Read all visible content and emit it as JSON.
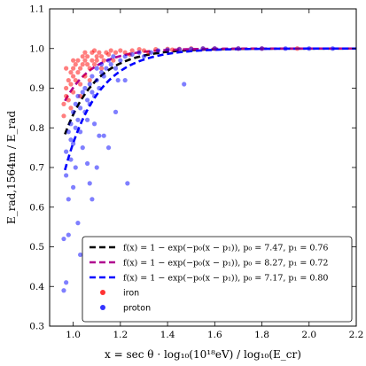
{
  "chart_data": {
    "type": "scatter",
    "xlabel": "x = sec θ · log₁₀(10¹⁸eV) / log₁₀(E_cr)",
    "ylabel": "E_rad,1564m / E_rad",
    "xlim": [
      0.9,
      2.2
    ],
    "ylim": [
      0.3,
      1.1
    ],
    "x_ticks": [
      "1.0",
      "1.2",
      "1.4",
      "1.6",
      "1.8",
      "2.0",
      "2.2"
    ],
    "y_ticks": [
      "0.3",
      "0.4",
      "0.5",
      "0.6",
      "0.7",
      "0.8",
      "0.9",
      "1.0",
      "1.1"
    ],
    "x_tick_values": [
      1.0,
      1.2,
      1.4,
      1.6,
      1.8,
      2.0,
      2.2
    ],
    "y_tick_values": [
      0.3,
      0.4,
      0.5,
      0.6,
      0.7,
      0.8,
      0.9,
      1.0,
      1.1
    ],
    "grid": false,
    "legend_position": "bottom-right",
    "fits": [
      {
        "label": "f(x) = 1 − exp(−p₀(x − p₁)), p₀ = 7.47, p₁ = 0.76",
        "p0": 7.47,
        "p1": 0.76,
        "color": "#000000",
        "x_range": [
          0.965,
          2.2
        ]
      },
      {
        "label": "f(x) = 1 − exp(−p₀(x − p₁)), p₀ = 8.27, p₁ = 0.72",
        "p0": 8.27,
        "p1": 0.72,
        "color": "#b0008f",
        "x_range": [
          0.965,
          2.2
        ]
      },
      {
        "label": "f(x) = 1 − exp(−p₀(x − p₁)), p₀ = 7.17, p₁ = 0.80",
        "p0": 7.17,
        "p1": 0.8,
        "color": "#0000ff",
        "x_range": [
          0.965,
          2.2
        ]
      }
    ],
    "series": [
      {
        "name": "iron",
        "color": "#ff0000",
        "points": [
          [
            0.96,
            0.86
          ],
          [
            0.96,
            0.83
          ],
          [
            0.97,
            0.88
          ],
          [
            0.97,
            0.9
          ],
          [
            0.98,
            0.92
          ],
          [
            0.98,
            0.87
          ],
          [
            0.99,
            0.91
          ],
          [
            0.99,
            0.94
          ],
          [
            1.0,
            0.93
          ],
          [
            1.0,
            0.95
          ],
          [
            1.0,
            0.89
          ],
          [
            1.01,
            0.96
          ],
          [
            1.01,
            0.92
          ],
          [
            1.02,
            0.94
          ],
          [
            1.02,
            0.97
          ],
          [
            1.03,
            0.95
          ],
          [
            1.03,
            0.91
          ],
          [
            1.04,
            0.96
          ],
          [
            1.04,
            0.98
          ],
          [
            1.05,
            0.93
          ],
          [
            1.05,
            0.97
          ],
          [
            1.06,
            0.96
          ],
          [
            1.06,
            0.98
          ],
          [
            1.07,
            0.95
          ],
          [
            1.08,
            0.97
          ],
          [
            1.08,
            0.99
          ],
          [
            1.09,
            0.96
          ],
          [
            1.1,
            0.98
          ],
          [
            1.1,
            0.97
          ],
          [
            1.11,
            0.99
          ],
          [
            1.12,
            0.98
          ],
          [
            1.13,
            0.97
          ],
          [
            1.14,
            0.99
          ],
          [
            1.15,
            0.985
          ],
          [
            1.16,
            0.995
          ],
          [
            1.18,
            0.99
          ],
          [
            1.2,
            0.995
          ],
          [
            1.22,
            0.99
          ],
          [
            1.25,
            0.995
          ],
          [
            1.28,
            0.998
          ],
          [
            1.3,
            0.995
          ],
          [
            1.35,
            0.998
          ],
          [
            1.4,
            0.999
          ],
          [
            1.45,
            0.999
          ],
          [
            1.5,
            1.0
          ],
          [
            1.55,
            1.0
          ],
          [
            1.6,
            1.0
          ],
          [
            1.7,
            1.0
          ],
          [
            1.8,
            1.0
          ],
          [
            1.95,
            1.0
          ],
          [
            1.03,
            0.88
          ],
          [
            1.07,
            0.92
          ],
          [
            0.99,
            0.85
          ],
          [
            1.12,
            0.95
          ],
          [
            1.17,
            0.97
          ],
          [
            1.24,
            0.985
          ],
          [
            1.32,
            0.99
          ],
          [
            1.42,
            0.997
          ],
          [
            1.05,
            0.99
          ],
          [
            1.09,
            0.995
          ],
          [
            0.97,
            0.95
          ],
          [
            1.0,
            0.97
          ]
        ]
      },
      {
        "name": "proton",
        "color": "#0000ff",
        "points": [
          [
            0.96,
            0.52
          ],
          [
            0.97,
            0.68
          ],
          [
            0.97,
            0.74
          ],
          [
            0.98,
            0.79
          ],
          [
            0.98,
            0.62
          ],
          [
            0.99,
            0.81
          ],
          [
            0.99,
            0.72
          ],
          [
            0.96,
            0.39
          ],
          [
            0.97,
            0.41
          ],
          [
            0.98,
            0.53
          ],
          [
            1.0,
            0.84
          ],
          [
            1.0,
            0.76
          ],
          [
            1.01,
            0.86
          ],
          [
            1.01,
            0.8
          ],
          [
            1.02,
            0.88
          ],
          [
            1.02,
            0.82
          ],
          [
            1.03,
            0.85
          ],
          [
            1.03,
            0.79
          ],
          [
            1.04,
            0.89
          ],
          [
            1.04,
            0.75
          ],
          [
            1.05,
            0.9
          ],
          [
            1.05,
            0.84
          ],
          [
            1.06,
            0.87
          ],
          [
            1.06,
            0.71
          ],
          [
            1.07,
            0.91
          ],
          [
            1.07,
            0.86
          ],
          [
            1.08,
            0.89
          ],
          [
            1.08,
            0.93
          ],
          [
            1.09,
            0.88
          ],
          [
            1.1,
            0.92
          ],
          [
            1.1,
            0.95
          ],
          [
            1.11,
            0.9
          ],
          [
            1.12,
            0.94
          ],
          [
            1.12,
            0.96
          ],
          [
            1.13,
            0.93
          ],
          [
            1.14,
            0.95
          ],
          [
            1.15,
            0.97
          ],
          [
            1.16,
            0.96
          ],
          [
            1.17,
            0.98
          ],
          [
            1.18,
            0.95
          ],
          [
            1.2,
            0.97
          ],
          [
            1.22,
            0.98
          ],
          [
            1.25,
            0.985
          ],
          [
            1.28,
            0.99
          ],
          [
            1.3,
            0.98
          ],
          [
            1.33,
            0.99
          ],
          [
            1.36,
            0.995
          ],
          [
            1.4,
            0.997
          ],
          [
            1.45,
            0.998
          ],
          [
            1.5,
            0.999
          ],
          [
            1.55,
            1.0
          ],
          [
            1.6,
            1.0
          ],
          [
            1.7,
            1.0
          ],
          [
            1.8,
            1.0
          ],
          [
            1.9,
            1.0
          ],
          [
            2.0,
            1.0
          ],
          [
            2.1,
            1.0
          ],
          [
            1.02,
            0.56
          ],
          [
            1.01,
            0.7
          ],
          [
            1.07,
            0.66
          ],
          [
            1.08,
            0.62
          ],
          [
            1.1,
            0.7
          ],
          [
            1.13,
            0.78
          ],
          [
            1.15,
            0.75
          ],
          [
            1.18,
            0.84
          ],
          [
            1.23,
            0.66
          ],
          [
            1.22,
            0.92
          ],
          [
            1.47,
            0.91
          ],
          [
            1.03,
            0.48
          ],
          [
            1.06,
            0.82
          ],
          [
            1.11,
            0.78
          ],
          [
            1.19,
            0.92
          ],
          [
            1.09,
            0.81
          ],
          [
            0.99,
            0.77
          ],
          [
            1.0,
            0.65
          ]
        ]
      }
    ],
    "legend_entries": [
      "iron",
      "proton"
    ]
  }
}
